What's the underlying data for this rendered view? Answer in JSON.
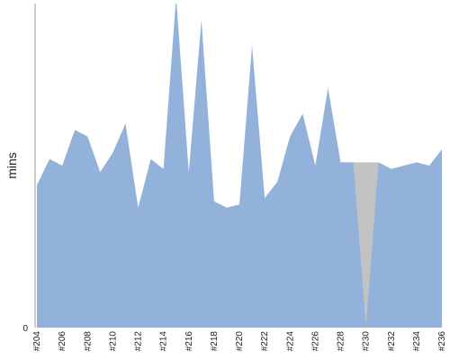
{
  "chart_data": {
    "type": "area",
    "title": "",
    "xlabel": "",
    "ylabel": "mins",
    "ylim": [
      0,
      100
    ],
    "grid": false,
    "legend": "none",
    "colors": {
      "area": "#92b1db",
      "gap": "#c2c2c2",
      "axis": "#9a9a9a"
    },
    "y_ticks": [
      0
    ],
    "y_tick_labels": [
      "0"
    ],
    "x": [
      "#204",
      "#205",
      "#206",
      "#207",
      "#208",
      "#209",
      "#210",
      "#211",
      "#212",
      "#213",
      "#214",
      "#215",
      "#216",
      "#217",
      "#218",
      "#219",
      "#220",
      "#221",
      "#222",
      "#223",
      "#224",
      "#225",
      "#226",
      "#227",
      "#228",
      "#229",
      "#230",
      "#231",
      "#232",
      "#233",
      "#234",
      "#235",
      "#236"
    ],
    "x_tick_labels": [
      "#204",
      "#206",
      "#208",
      "#210",
      "#212",
      "#214",
      "#216",
      "#218",
      "#220",
      "#222",
      "#224",
      "#226",
      "#228",
      "#230",
      "#232",
      "#234",
      "#236"
    ],
    "values": [
      44,
      52,
      50,
      61,
      59,
      48,
      54,
      63,
      37,
      52,
      49,
      102,
      48,
      95,
      39,
      37,
      38,
      87,
      40,
      45,
      59,
      66,
      50,
      74,
      51,
      51,
      0,
      51,
      49,
      50,
      51,
      50,
      55
    ],
    "missing_x": [
      "#230"
    ]
  }
}
